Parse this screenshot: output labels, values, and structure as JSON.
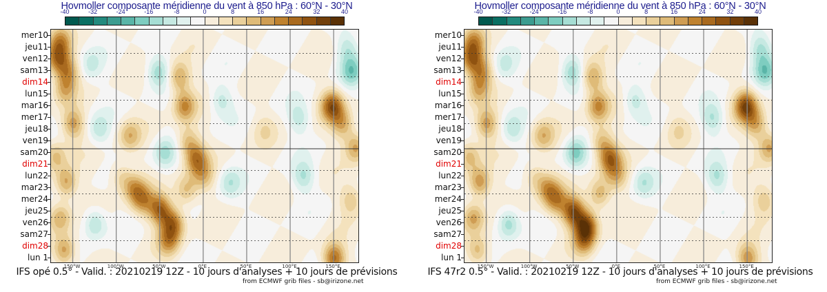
{
  "chart_data": [
    {
      "type": "heatmap",
      "title": "Hovmoller composante méridienne du vent à 850 hPa : 60°N - 30°N",
      "footer": "IFS opé 0.5° - Valid. : 20210219 12Z - 10 jours d'analyses + 10 jours de prévisions",
      "credit": "from ECMWF grib files - sb@irizone.net",
      "xlabel": "Longitude",
      "ylabel": "Date",
      "x_range": [
        -175,
        180
      ],
      "x_ticks": [
        "150°W",
        "100°W",
        "50°W",
        "0°E",
        "50°E",
        "100°E",
        "150°E"
      ],
      "x_tick_values": [
        -150,
        -100,
        -50,
        0,
        50,
        100,
        150
      ],
      "y_ticks": [
        "mer10",
        "jeu11",
        "ven12",
        "sam13",
        "dim14",
        "lun15",
        "mar16",
        "mer17",
        "jeu18",
        "ven19",
        "sam20",
        "dim21",
        "lun22",
        "mar23",
        "mer24",
        "jeu25",
        "ven26",
        "sam27",
        "dim28",
        "lun 1"
      ],
      "y_sundays": [
        "dim14",
        "dim21",
        "dim28"
      ],
      "analysis_forecast_boundary": "sam20",
      "colorbar": {
        "levels": [
          -40,
          -36,
          -32,
          -28,
          -24,
          -20,
          -16,
          -12,
          -8,
          -4,
          0,
          4,
          8,
          12,
          16,
          20,
          24,
          28,
          32,
          36,
          40
        ],
        "tick_labels": [
          "-40",
          "-32",
          "-24",
          "-16",
          "-8",
          "0",
          "8",
          "16",
          "24",
          "32",
          "40"
        ],
        "colors": [
          "#01594f",
          "#0a6f63",
          "#228a7e",
          "#3c9c90",
          "#5ab5a8",
          "#7ecdc0",
          "#a6ded4",
          "#c6e9e2",
          "#e0f1ee",
          "#f5f5f5",
          "#f7eddb",
          "#f4e2bd",
          "#ead09b",
          "#dfbb78",
          "#cf9d53",
          "#bf822f",
          "#a96a1f",
          "#8f5210",
          "#723f0a",
          "#5a3106"
        ]
      },
      "features": [
        {
          "lon": -165,
          "day": 0.5,
          "value": 18
        },
        {
          "lon": -168,
          "day": 2.0,
          "value": 22
        },
        {
          "lon": -155,
          "day": 3.0,
          "value": 16
        },
        {
          "lon": -160,
          "day": 4.5,
          "value": 14
        },
        {
          "lon": -150,
          "day": 7.5,
          "value": 18
        },
        {
          "lon": -170,
          "day": 10.2,
          "value": 14
        },
        {
          "lon": -158,
          "day": 12.5,
          "value": 18
        },
        {
          "lon": -165,
          "day": 15.5,
          "value": 16
        },
        {
          "lon": -160,
          "day": 18.3,
          "value": 20
        },
        {
          "lon": -130,
          "day": 2.5,
          "value": -8
        },
        {
          "lon": -120,
          "day": 8.0,
          "value": -10
        },
        {
          "lon": -125,
          "day": 16.0,
          "value": -14
        },
        {
          "lon": -85,
          "day": 8.5,
          "value": 14
        },
        {
          "lon": -95,
          "day": 12.0,
          "value": 10
        },
        {
          "lon": -80,
          "day": 13.0,
          "value": 16
        },
        {
          "lon": -70,
          "day": 14.0,
          "value": 18
        },
        {
          "lon": -50,
          "day": 14.8,
          "value": 26
        },
        {
          "lon": -35,
          "day": 16.0,
          "value": 24
        },
        {
          "lon": -40,
          "day": 17.5,
          "value": 18
        },
        {
          "lon": -52,
          "day": 3.0,
          "value": -14
        },
        {
          "lon": -45,
          "day": 10.0,
          "value": -12
        },
        {
          "lon": -28,
          "day": 3.5,
          "value": 18
        },
        {
          "lon": -22,
          "day": 6.0,
          "value": 20
        },
        {
          "lon": -18,
          "day": 9.0,
          "value": 14
        },
        {
          "lon": -8,
          "day": 10.5,
          "value": 22
        },
        {
          "lon": -20,
          "day": 13.2,
          "value": 14
        },
        {
          "lon": 0,
          "day": 12.0,
          "value": 12
        },
        {
          "lon": 20,
          "day": 5.5,
          "value": -10
        },
        {
          "lon": 30,
          "day": 12.5,
          "value": -10
        },
        {
          "lon": 70,
          "day": 8.0,
          "value": 6
        },
        {
          "lon": 110,
          "day": 7.0,
          "value": -10
        },
        {
          "lon": 115,
          "day": 12.0,
          "value": -12
        },
        {
          "lon": 148,
          "day": 6.0,
          "value": 28
        },
        {
          "lon": 160,
          "day": 7.5,
          "value": 16
        },
        {
          "lon": 175,
          "day": 9.5,
          "value": 18
        },
        {
          "lon": 170,
          "day": 3.0,
          "value": -16
        },
        {
          "lon": 165,
          "day": 1.0,
          "value": -10
        },
        {
          "lon": 150,
          "day": 19.0,
          "value": 26
        },
        {
          "lon": 170,
          "day": 14.0,
          "value": 12
        }
      ]
    },
    {
      "type": "heatmap",
      "title": "Hovmoller composante méridienne du vent à 850 hPa : 60°N - 30°N",
      "footer": "IFS 47r2 0.5° - Valid. : 20210219 12Z - 10 jours d'analyses + 10 jours de prévisions",
      "credit": "from ECMWF grib files - sb@irizone.net",
      "xlabel": "Longitude",
      "ylabel": "Date",
      "x_range": [
        -175,
        180
      ],
      "x_ticks": [
        "150°W",
        "100°W",
        "50°W",
        "0°E",
        "50°E",
        "100°E",
        "150°E"
      ],
      "x_tick_values": [
        -150,
        -100,
        -50,
        0,
        50,
        100,
        150
      ],
      "y_ticks": [
        "mer10",
        "jeu11",
        "ven12",
        "sam13",
        "dim14",
        "lun15",
        "mar16",
        "mer17",
        "jeu18",
        "ven19",
        "sam20",
        "dim21",
        "lun22",
        "mar23",
        "mer24",
        "jeu25",
        "ven26",
        "sam27",
        "dim28",
        "lun 1"
      ],
      "y_sundays": [
        "dim14",
        "dim21",
        "dim28"
      ],
      "analysis_forecast_boundary": "sam20",
      "colorbar": {
        "levels": [
          -40,
          -36,
          -32,
          -28,
          -24,
          -20,
          -16,
          -12,
          -8,
          -4,
          0,
          4,
          8,
          12,
          16,
          20,
          24,
          28,
          32,
          36,
          40
        ],
        "tick_labels": [
          "-40",
          "-32",
          "-24",
          "-16",
          "-8",
          "0",
          "8",
          "16",
          "24",
          "32",
          "40"
        ],
        "colors": [
          "#01594f",
          "#0a6f63",
          "#228a7e",
          "#3c9c90",
          "#5ab5a8",
          "#7ecdc0",
          "#a6ded4",
          "#c6e9e2",
          "#e0f1ee",
          "#f5f5f5",
          "#f7eddb",
          "#f4e2bd",
          "#ead09b",
          "#dfbb78",
          "#cf9d53",
          "#bf822f",
          "#a96a1f",
          "#8f5210",
          "#723f0a",
          "#5a3106"
        ]
      },
      "features": [
        {
          "lon": -165,
          "day": 0.5,
          "value": 18
        },
        {
          "lon": -168,
          "day": 2.0,
          "value": 22
        },
        {
          "lon": -155,
          "day": 3.0,
          "value": 16
        },
        {
          "lon": -160,
          "day": 4.5,
          "value": 14
        },
        {
          "lon": -150,
          "day": 7.5,
          "value": 18
        },
        {
          "lon": -170,
          "day": 10.2,
          "value": 14
        },
        {
          "lon": -158,
          "day": 12.5,
          "value": 20
        },
        {
          "lon": -165,
          "day": 15.5,
          "value": 18
        },
        {
          "lon": -160,
          "day": 18.3,
          "value": 16
        },
        {
          "lon": -130,
          "day": 2.5,
          "value": -8
        },
        {
          "lon": -120,
          "day": 8.0,
          "value": -10
        },
        {
          "lon": -125,
          "day": 16.0,
          "value": -16
        },
        {
          "lon": -85,
          "day": 8.5,
          "value": 14
        },
        {
          "lon": -95,
          "day": 12.0,
          "value": 10
        },
        {
          "lon": -80,
          "day": 13.0,
          "value": 16
        },
        {
          "lon": -70,
          "day": 14.0,
          "value": 18
        },
        {
          "lon": -50,
          "day": 15.0,
          "value": 30
        },
        {
          "lon": -35,
          "day": 16.2,
          "value": 30
        },
        {
          "lon": -38,
          "day": 17.5,
          "value": 18
        },
        {
          "lon": -52,
          "day": 3.0,
          "value": -14
        },
        {
          "lon": -48,
          "day": 10.0,
          "value": -16
        },
        {
          "lon": -28,
          "day": 3.5,
          "value": 18
        },
        {
          "lon": -22,
          "day": 6.0,
          "value": 20
        },
        {
          "lon": -18,
          "day": 9.0,
          "value": 14
        },
        {
          "lon": -8,
          "day": 10.5,
          "value": 24
        },
        {
          "lon": -20,
          "day": 13.5,
          "value": 16
        },
        {
          "lon": 0,
          "day": 12.0,
          "value": 12
        },
        {
          "lon": 20,
          "day": 5.5,
          "value": -10
        },
        {
          "lon": 30,
          "day": 12.5,
          "value": -10
        },
        {
          "lon": 70,
          "day": 8.0,
          "value": 6
        },
        {
          "lon": 110,
          "day": 7.0,
          "value": -12
        },
        {
          "lon": 115,
          "day": 12.0,
          "value": -12
        },
        {
          "lon": 148,
          "day": 6.0,
          "value": 30
        },
        {
          "lon": 160,
          "day": 7.5,
          "value": 16
        },
        {
          "lon": 175,
          "day": 9.5,
          "value": 18
        },
        {
          "lon": 170,
          "day": 3.0,
          "value": -16
        },
        {
          "lon": 165,
          "day": 1.0,
          "value": -12
        },
        {
          "lon": 150,
          "day": 19.0,
          "value": 20
        },
        {
          "lon": 170,
          "day": 14.0,
          "value": 12
        }
      ]
    }
  ]
}
